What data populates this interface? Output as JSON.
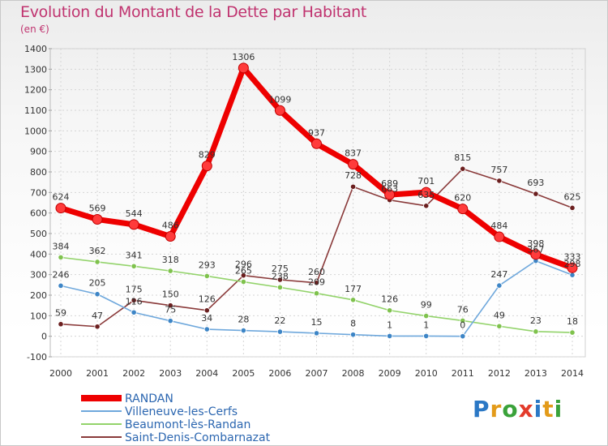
{
  "title": "Evolution du Montant de la Dette par Habitant",
  "subtitle": "(en €)",
  "logo": {
    "text": "Proxiti",
    "colors": [
      "#2b78c5",
      "#e39b1a",
      "#3aa23a",
      "#e33b2b",
      "#2b78c5",
      "#e39b1a",
      "#3aa23a"
    ]
  },
  "chart_data": {
    "type": "line",
    "x": [
      "2000",
      "2001",
      "2002",
      "2003",
      "2004",
      "2005",
      "2006",
      "2007",
      "2008",
      "2009",
      "2010",
      "2011",
      "2012",
      "2013",
      "2014"
    ],
    "ylim": [
      -100,
      1400
    ],
    "yticks": [
      "-100",
      "0",
      "100",
      "200",
      "300",
      "400",
      "500",
      "600",
      "700",
      "800",
      "900",
      "1000",
      "1100",
      "1200",
      "1300",
      "1400"
    ],
    "grid": true,
    "legend_position": "bottom-left",
    "series": [
      {
        "name": "RANDAN",
        "color": "#ee0000",
        "marker": "#ff3b3b",
        "values": [
          624,
          569,
          544,
          486,
          829,
          1306,
          1099,
          937,
          837,
          689,
          701,
          620,
          484,
          398,
          333
        ],
        "labels": [
          "624",
          "569",
          "544",
          "486",
          "829",
          "1306",
          "1099",
          "937",
          "837",
          "689",
          "701",
          "620",
          "484",
          "398",
          "333"
        ]
      },
      {
        "name": "Villeneuve-les-Cerfs",
        "color": "#6fa8dc",
        "marker": "#3d85c6",
        "values": [
          246,
          205,
          116,
          75,
          34,
          28,
          22,
          15,
          8,
          1,
          1,
          0,
          247,
          367,
          298
        ],
        "labels": [
          "246",
          "205",
          "116",
          "75",
          "34",
          "28",
          "22",
          "15",
          "8",
          "1",
          "1",
          "0",
          "247",
          "367",
          "298"
        ]
      },
      {
        "name": "Beaumont-lès-Randan",
        "color": "#93d36b",
        "marker": "#7fc24d",
        "values": [
          384,
          362,
          341,
          318,
          293,
          265,
          238,
          209,
          177,
          126,
          99,
          76,
          49,
          23,
          18
        ],
        "labels": [
          "384",
          "362",
          "341",
          "318",
          "293",
          "265",
          "238",
          "209",
          "177",
          "126",
          "99",
          "76",
          "49",
          "23",
          "18"
        ]
      },
      {
        "name": "Saint-Denis-Combarnazat",
        "color": "#8a3a3a",
        "marker": "#6b1f1f",
        "values": [
          59,
          47,
          175,
          150,
          126,
          296,
          275,
          260,
          728,
          663,
          635,
          815,
          757,
          693,
          625
        ],
        "labels": [
          "59",
          "47",
          "175",
          "150",
          "126",
          "296",
          "275",
          "260",
          "728",
          "663",
          "635",
          "815",
          "757",
          "693",
          "625"
        ]
      }
    ]
  }
}
